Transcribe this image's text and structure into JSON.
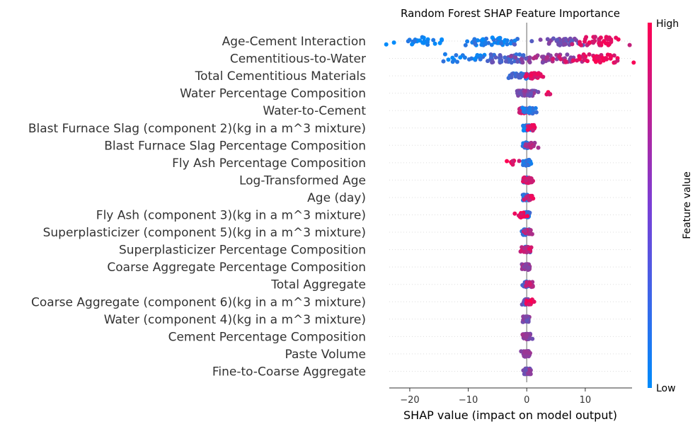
{
  "chart_data": {
    "type": "scatter",
    "subtype": "shap-beeswarm",
    "title": "Random Forest SHAP Feature Importance",
    "xlabel": "SHAP value (impact on model output)",
    "xlim": [
      -23.5,
      18
    ],
    "xticks": [
      -20,
      -10,
      0,
      10
    ],
    "colorbar": {
      "label": "Feature value",
      "high": "High",
      "low": "Low",
      "low_color": "#008bfb",
      "high_color": "#ff0051"
    },
    "zero_line_color": "#999999",
    "features": [
      {
        "name": "Age-Cement Interaction",
        "clusters": [
          {
            "c": -18.5,
            "s": 3.0,
            "n": 26,
            "v": 0.05
          },
          {
            "c": -5.5,
            "s": 2.6,
            "n": 48,
            "v": 0.1
          },
          {
            "c": 6.0,
            "s": 2.0,
            "n": 36,
            "v": 0.45
          },
          {
            "c": 12.5,
            "s": 2.2,
            "n": 46,
            "v": 0.85
          }
        ]
      },
      {
        "name": "Cementitious-to-Water",
        "clusters": [
          {
            "c": -9.0,
            "s": 3.2,
            "n": 28,
            "v": 0.1
          },
          {
            "c": -3.0,
            "s": 2.0,
            "n": 48,
            "v": 0.3
          },
          {
            "c": 3.5,
            "s": 2.5,
            "n": 46,
            "v": 0.6
          },
          {
            "c": 12.0,
            "s": 3.0,
            "n": 48,
            "v": 0.9
          }
        ]
      },
      {
        "name": "Total Cementitious Materials",
        "clusters": [
          {
            "c": -1.0,
            "s": 1.0,
            "n": 36,
            "v": 0.2
          },
          {
            "c": 1.3,
            "s": 0.8,
            "n": 38,
            "v": 0.85
          }
        ]
      },
      {
        "name": "Water Percentage Composition",
        "clusters": [
          {
            "c": 0.0,
            "s": 0.7,
            "n": 62,
            "v": 0.5
          },
          {
            "c": 3.8,
            "s": 0.4,
            "n": 4,
            "v": 0.9
          }
        ]
      },
      {
        "name": "Water-to-Cement",
        "clusters": [
          {
            "c": -0.6,
            "s": 0.6,
            "n": 30,
            "v": 0.85
          },
          {
            "c": 0.5,
            "s": 0.6,
            "n": 34,
            "v": 0.15
          }
        ]
      },
      {
        "name": "Blast Furnace Slag (component 2)(kg in a m^3 mixture)",
        "clusters": [
          {
            "c": 0.0,
            "s": 0.3,
            "n": 40,
            "v": 0.1
          },
          {
            "c": 0.8,
            "s": 0.4,
            "n": 18,
            "v": 0.85
          }
        ]
      },
      {
        "name": "Blast Furnace Slag Percentage Composition",
        "clusters": [
          {
            "c": 0.0,
            "s": 0.3,
            "n": 40,
            "v": 0.15
          },
          {
            "c": 0.8,
            "s": 0.4,
            "n": 18,
            "v": 0.7
          }
        ]
      },
      {
        "name": "Fly Ash Percentage Composition",
        "clusters": [
          {
            "c": 0.0,
            "s": 0.3,
            "n": 46,
            "v": 0.15
          },
          {
            "c": -2.2,
            "s": 0.5,
            "n": 10,
            "v": 0.9
          }
        ]
      },
      {
        "name": "Log-Transformed Age",
        "clusters": [
          {
            "c": -0.2,
            "s": 0.3,
            "n": 38,
            "v": 0.2
          },
          {
            "c": 0.3,
            "s": 0.4,
            "n": 24,
            "v": 0.85
          }
        ]
      },
      {
        "name": "Age (day)",
        "clusters": [
          {
            "c": -0.2,
            "s": 0.3,
            "n": 40,
            "v": 0.2
          },
          {
            "c": 0.4,
            "s": 0.4,
            "n": 16,
            "v": 0.85
          }
        ]
      },
      {
        "name": "Fly Ash (component 3)(kg in a m^3 mixture)",
        "clusters": [
          {
            "c": 0.0,
            "s": 0.3,
            "n": 40,
            "v": 0.2
          },
          {
            "c": -1.0,
            "s": 0.5,
            "n": 14,
            "v": 0.9
          }
        ]
      },
      {
        "name": "Superplasticizer (component 5)(kg in a m^3 mixture)",
        "clusters": [
          {
            "c": -0.1,
            "s": 0.3,
            "n": 40,
            "v": 0.2
          },
          {
            "c": 0.4,
            "s": 0.4,
            "n": 18,
            "v": 0.7
          }
        ]
      },
      {
        "name": "Superplasticizer Percentage Composition",
        "clusters": [
          {
            "c": -0.1,
            "s": 0.3,
            "n": 40,
            "v": 0.25
          },
          {
            "c": 0.2,
            "s": 0.4,
            "n": 18,
            "v": 0.8
          }
        ]
      },
      {
        "name": "Coarse Aggregate Percentage Composition",
        "clusters": [
          {
            "c": 0.0,
            "s": 0.35,
            "n": 58,
            "v": 0.6
          }
        ]
      },
      {
        "name": "Total Aggregate",
        "clusters": [
          {
            "c": 0.0,
            "s": 0.3,
            "n": 40,
            "v": 0.3
          },
          {
            "c": 0.5,
            "s": 0.4,
            "n": 14,
            "v": 0.7
          }
        ]
      },
      {
        "name": "Coarse Aggregate  (component 6)(kg in a m^3 mixture)",
        "clusters": [
          {
            "c": 0.0,
            "s": 0.3,
            "n": 40,
            "v": 0.4
          },
          {
            "c": 0.6,
            "s": 0.4,
            "n": 16,
            "v": 0.9
          }
        ]
      },
      {
        "name": "Water  (component 4)(kg in a m^3 mixture)",
        "clusters": [
          {
            "c": 0.0,
            "s": 0.3,
            "n": 54,
            "v": 0.5
          }
        ]
      },
      {
        "name": "Cement Percentage Composition",
        "clusters": [
          {
            "c": 0.0,
            "s": 0.3,
            "n": 54,
            "v": 0.55
          }
        ]
      },
      {
        "name": "Paste Volume",
        "clusters": [
          {
            "c": 0.0,
            "s": 0.3,
            "n": 54,
            "v": 0.5
          }
        ]
      },
      {
        "name": "Fine-to-Coarse Aggregate",
        "clusters": [
          {
            "c": 0.0,
            "s": 0.3,
            "n": 54,
            "v": 0.5
          }
        ]
      }
    ]
  }
}
